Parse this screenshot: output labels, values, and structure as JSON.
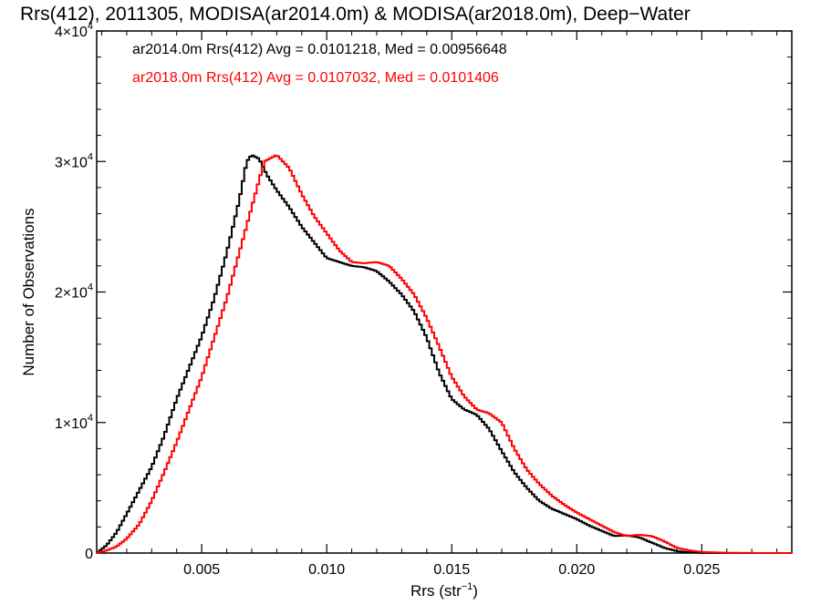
{
  "chart_data": {
    "type": "line",
    "title": "Rrs(412), 2011305, MODISA(ar2014.0m) & MODISA(ar2018.0m), Deep−Water",
    "xlabel": "Rrs (str",
    "xlabel_exp": "−1",
    "xlabel_close": ")",
    "ylabel": "Number of Observations",
    "xlim": [
      0.0008,
      0.0286
    ],
    "ylim": [
      0,
      40000
    ],
    "x_ticks": [
      {
        "value": 0.005,
        "label": "0.005"
      },
      {
        "value": 0.01,
        "label": "0.010"
      },
      {
        "value": 0.015,
        "label": "0.015"
      },
      {
        "value": 0.02,
        "label": "0.020"
      },
      {
        "value": 0.025,
        "label": "0.025"
      }
    ],
    "y_ticks": [
      {
        "value": 0,
        "label": "0",
        "exp": ""
      },
      {
        "value": 10000,
        "label": "1×10",
        "exp": "4"
      },
      {
        "value": 20000,
        "label": "2×10",
        "exp": "4"
      },
      {
        "value": 30000,
        "label": "3×10",
        "exp": "4"
      },
      {
        "value": 40000,
        "label": "4×10",
        "exp": "4"
      }
    ],
    "series": [
      {
        "name": "ar2014.0m",
        "color": "#000000",
        "legend": "ar2014.0m Rrs(412) Avg = 0.0101218, Med = 0.00956648",
        "points": [
          [
            0.0008,
            0
          ],
          [
            0.0012,
            600
          ],
          [
            0.0016,
            1600
          ],
          [
            0.002,
            3000
          ],
          [
            0.0025,
            4800
          ],
          [
            0.003,
            6600
          ],
          [
            0.0035,
            9000
          ],
          [
            0.004,
            11800
          ],
          [
            0.0045,
            14200
          ],
          [
            0.005,
            16600
          ],
          [
            0.0055,
            19500
          ],
          [
            0.006,
            23000
          ],
          [
            0.0065,
            27000
          ],
          [
            0.0068,
            30000
          ],
          [
            0.007,
            30500
          ],
          [
            0.0073,
            30200
          ],
          [
            0.0076,
            29000
          ],
          [
            0.008,
            27800
          ],
          [
            0.0085,
            26500
          ],
          [
            0.009,
            25000
          ],
          [
            0.0095,
            23800
          ],
          [
            0.01,
            22600
          ],
          [
            0.0105,
            22300
          ],
          [
            0.011,
            22000
          ],
          [
            0.0115,
            21900
          ],
          [
            0.012,
            21600
          ],
          [
            0.0125,
            20800
          ],
          [
            0.013,
            19800
          ],
          [
            0.0135,
            18500
          ],
          [
            0.014,
            16500
          ],
          [
            0.0145,
            13800
          ],
          [
            0.015,
            11800
          ],
          [
            0.0155,
            11000
          ],
          [
            0.016,
            10600
          ],
          [
            0.0165,
            9500
          ],
          [
            0.017,
            7800
          ],
          [
            0.0175,
            6200
          ],
          [
            0.018,
            5000
          ],
          [
            0.0185,
            4000
          ],
          [
            0.019,
            3400
          ],
          [
            0.0195,
            3000
          ],
          [
            0.02,
            2600
          ],
          [
            0.0205,
            2100
          ],
          [
            0.021,
            1700
          ],
          [
            0.0215,
            1300
          ],
          [
            0.022,
            1350
          ],
          [
            0.0225,
            1200
          ],
          [
            0.023,
            800
          ],
          [
            0.0235,
            400
          ],
          [
            0.024,
            150
          ],
          [
            0.0245,
            50
          ],
          [
            0.025,
            10
          ],
          [
            0.026,
            0
          ],
          [
            0.0286,
            0
          ]
        ]
      },
      {
        "name": "ar2018.0m",
        "color": "#ff0000",
        "legend": "ar2018.0m Rrs(412) Avg = 0.0107032, Med = 0.0101406",
        "points": [
          [
            0.0008,
            0
          ],
          [
            0.0012,
            200
          ],
          [
            0.0016,
            500
          ],
          [
            0.002,
            1100
          ],
          [
            0.0025,
            2200
          ],
          [
            0.003,
            4000
          ],
          [
            0.0035,
            6200
          ],
          [
            0.004,
            8500
          ],
          [
            0.0045,
            11000
          ],
          [
            0.005,
            13500
          ],
          [
            0.0055,
            16500
          ],
          [
            0.006,
            19500
          ],
          [
            0.0065,
            23000
          ],
          [
            0.007,
            26500
          ],
          [
            0.0075,
            30000
          ],
          [
            0.008,
            30500
          ],
          [
            0.0085,
            29500
          ],
          [
            0.009,
            27500
          ],
          [
            0.0095,
            25800
          ],
          [
            0.01,
            24500
          ],
          [
            0.0105,
            23200
          ],
          [
            0.011,
            22300
          ],
          [
            0.0115,
            22200
          ],
          [
            0.012,
            22300
          ],
          [
            0.0125,
            22000
          ],
          [
            0.013,
            21000
          ],
          [
            0.0135,
            19800
          ],
          [
            0.014,
            18000
          ],
          [
            0.0145,
            15800
          ],
          [
            0.015,
            13500
          ],
          [
            0.0155,
            12000
          ],
          [
            0.016,
            11000
          ],
          [
            0.0165,
            10700
          ],
          [
            0.017,
            10000
          ],
          [
            0.0175,
            8000
          ],
          [
            0.018,
            6400
          ],
          [
            0.0185,
            5300
          ],
          [
            0.019,
            4400
          ],
          [
            0.0195,
            3700
          ],
          [
            0.02,
            3100
          ],
          [
            0.0205,
            2600
          ],
          [
            0.021,
            2100
          ],
          [
            0.0215,
            1600
          ],
          [
            0.022,
            1300
          ],
          [
            0.0225,
            1400
          ],
          [
            0.023,
            1300
          ],
          [
            0.0235,
            900
          ],
          [
            0.024,
            400
          ],
          [
            0.0245,
            200
          ],
          [
            0.025,
            80
          ],
          [
            0.026,
            20
          ],
          [
            0.027,
            5
          ],
          [
            0.0286,
            0
          ]
        ]
      }
    ]
  }
}
